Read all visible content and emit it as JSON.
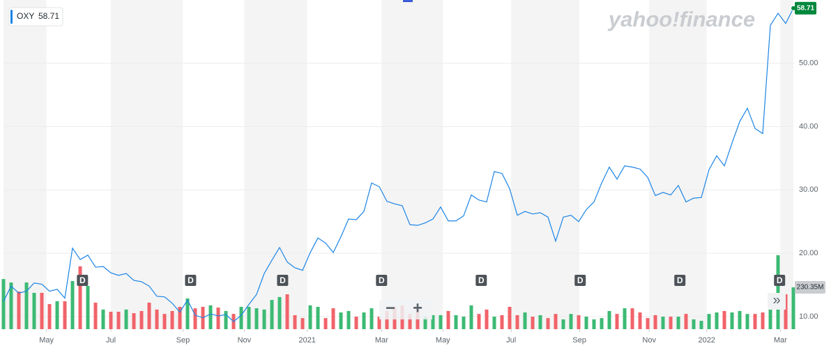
{
  "chart_data": {
    "type": "line",
    "watermark": "yahoo!finance",
    "x": [
      0,
      1,
      2,
      3,
      4,
      5,
      6,
      7,
      8,
      9,
      10,
      11,
      12,
      13,
      14,
      15,
      16,
      17,
      18,
      19,
      20,
      21,
      22,
      23,
      24,
      25,
      26,
      27,
      28,
      29,
      30,
      31,
      32,
      33,
      34,
      35,
      36,
      37,
      38,
      39,
      40,
      41,
      42,
      43,
      44,
      45,
      46,
      47,
      48,
      49,
      50,
      51,
      52,
      53,
      54,
      55,
      56,
      57,
      58,
      59,
      60,
      61,
      62,
      63,
      64,
      65,
      66,
      67,
      68,
      69,
      70,
      71,
      72,
      73,
      74,
      75,
      76,
      77,
      78,
      79,
      80,
      81,
      82,
      83,
      84,
      85,
      86,
      87,
      88,
      89,
      90,
      91,
      92,
      93,
      94,
      95,
      96,
      97,
      98,
      99,
      100,
      101,
      102,
      103
    ],
    "xlim": [
      0,
      103
    ],
    "xticks": [
      {
        "value": 5.6,
        "label": "May"
      },
      {
        "value": 14,
        "label": "Jul"
      },
      {
        "value": 23.4,
        "label": "Sep"
      },
      {
        "value": 31.4,
        "label": "Nov"
      },
      {
        "value": 39.6,
        "label": "2021"
      },
      {
        "value": 49.3,
        "label": "Mar"
      },
      {
        "value": 57.3,
        "label": "May"
      },
      {
        "value": 66.2,
        "label": "Jul"
      },
      {
        "value": 75.1,
        "label": "Sep"
      },
      {
        "value": 84.2,
        "label": "Nov"
      },
      {
        "value": 91.7,
        "label": "2022"
      },
      {
        "value": 101.3,
        "label": "Mar"
      }
    ],
    "ylim": [
      8,
      60
    ],
    "yticks": [
      {
        "value": 10,
        "label": "10.00"
      },
      {
        "value": 20,
        "label": "20.00"
      },
      {
        "value": 30,
        "label": "30.00"
      },
      {
        "value": 40,
        "label": "40.00"
      },
      {
        "value": 50,
        "label": "50.00"
      }
    ],
    "y2lim": [
      0,
      1812
    ],
    "grid": true,
    "up_color": "#3cba74",
    "down_color": "#f1636a",
    "dividend_markers": {
      "label": "D",
      "x": [
        10.3,
        24.4,
        36.4,
        49.3,
        62.3,
        75.2,
        88.2,
        101.2
      ]
    },
    "controls": [
      "−",
      "+",
      "»"
    ],
    "series": [
      {
        "name": "OXY",
        "color": "#1a84e6",
        "values": [
          12.4,
          14.8,
          13.7,
          14.0,
          15.3,
          15.1,
          14.0,
          14.3,
          12.9,
          20.8,
          19.0,
          19.7,
          17.8,
          17.9,
          16.9,
          16.5,
          16.8,
          15.7,
          15.5,
          14.8,
          13.2,
          13.1,
          12.1,
          10.7,
          12.6,
          10.2,
          9.8,
          10.4,
          10.1,
          10.3,
          9.2,
          10.2,
          11.9,
          13.5,
          16.8,
          18.9,
          20.9,
          18.6,
          17.7,
          17.3,
          20.1,
          22.4,
          21.6,
          20.1,
          22.6,
          25.4,
          25.3,
          26.6,
          31.1,
          30.5,
          28.2,
          27.8,
          27.5,
          24.5,
          24.4,
          24.8,
          25.4,
          27.3,
          25.1,
          25.1,
          25.9,
          29.2,
          28.4,
          28.1,
          32.9,
          32.6,
          30.2,
          26.0,
          26.6,
          26.2,
          26.4,
          25.7,
          21.9,
          25.7,
          26.0,
          25.0,
          26.9,
          28.1,
          31.1,
          33.6,
          31.7,
          33.8,
          33.6,
          33.3,
          32.0,
          29.1,
          29.6,
          29.2,
          30.7,
          28.1,
          28.7,
          28.8,
          33.2,
          35.4,
          33.8,
          37.4,
          40.8,
          42.9,
          39.7,
          38.9,
          56.0,
          57.9,
          56.3,
          58.71
        ]
      },
      {
        "type": "bar",
        "axis": "y2",
        "values": [
          276,
          257,
          207,
          257,
          200,
          200,
          138,
          154,
          154,
          265,
          346,
          238,
          146,
          108,
          96,
          96,
          108,
          88,
          100,
          146,
          108,
          84,
          100,
          123,
          169,
          115,
          123,
          131,
          119,
          100,
          84,
          123,
          123,
          115,
          108,
          161,
          177,
          192,
          77,
          61,
          131,
          123,
          61,
          115,
          92,
          100,
          69,
          92,
          115,
          69,
          100,
          123,
          131,
          84,
          108,
          69,
          77,
          77,
          100,
          77,
          69,
          131,
          84,
          108,
          69,
          77,
          123,
          77,
          92,
          69,
          77,
          61,
          84,
          54,
          84,
          77,
          69,
          54,
          61,
          100,
          84,
          115,
          115,
          92,
          61,
          77,
          69,
          69,
          69,
          84,
          54,
          46,
          84,
          92,
          100,
          92,
          100,
          84,
          84,
          92,
          192,
          407,
          192,
          230.35
        ],
        "value_labels": [
          null,
          null,
          null,
          null,
          null,
          null,
          null,
          null,
          null,
          null,
          null,
          null,
          null,
          null,
          null,
          null,
          null,
          null,
          null,
          null,
          null,
          null,
          null,
          null,
          null,
          null,
          null,
          null,
          null,
          null,
          null,
          null,
          null,
          null,
          null,
          null,
          null,
          null,
          null,
          null,
          null,
          null,
          null,
          null,
          null,
          null,
          null,
          null,
          null,
          null,
          null,
          null,
          null,
          null,
          null,
          null,
          null,
          null,
          null,
          null,
          null,
          null,
          null,
          null,
          null,
          null,
          null,
          null,
          null,
          null,
          null,
          null,
          null,
          null,
          null,
          null,
          null,
          null,
          null,
          null,
          null,
          null,
          null,
          null,
          null,
          null,
          null,
          null,
          null,
          null,
          null,
          null,
          null,
          null,
          null,
          null,
          null,
          null,
          null,
          null,
          null,
          null,
          null,
          "230.35M"
        ]
      }
    ]
  }
}
